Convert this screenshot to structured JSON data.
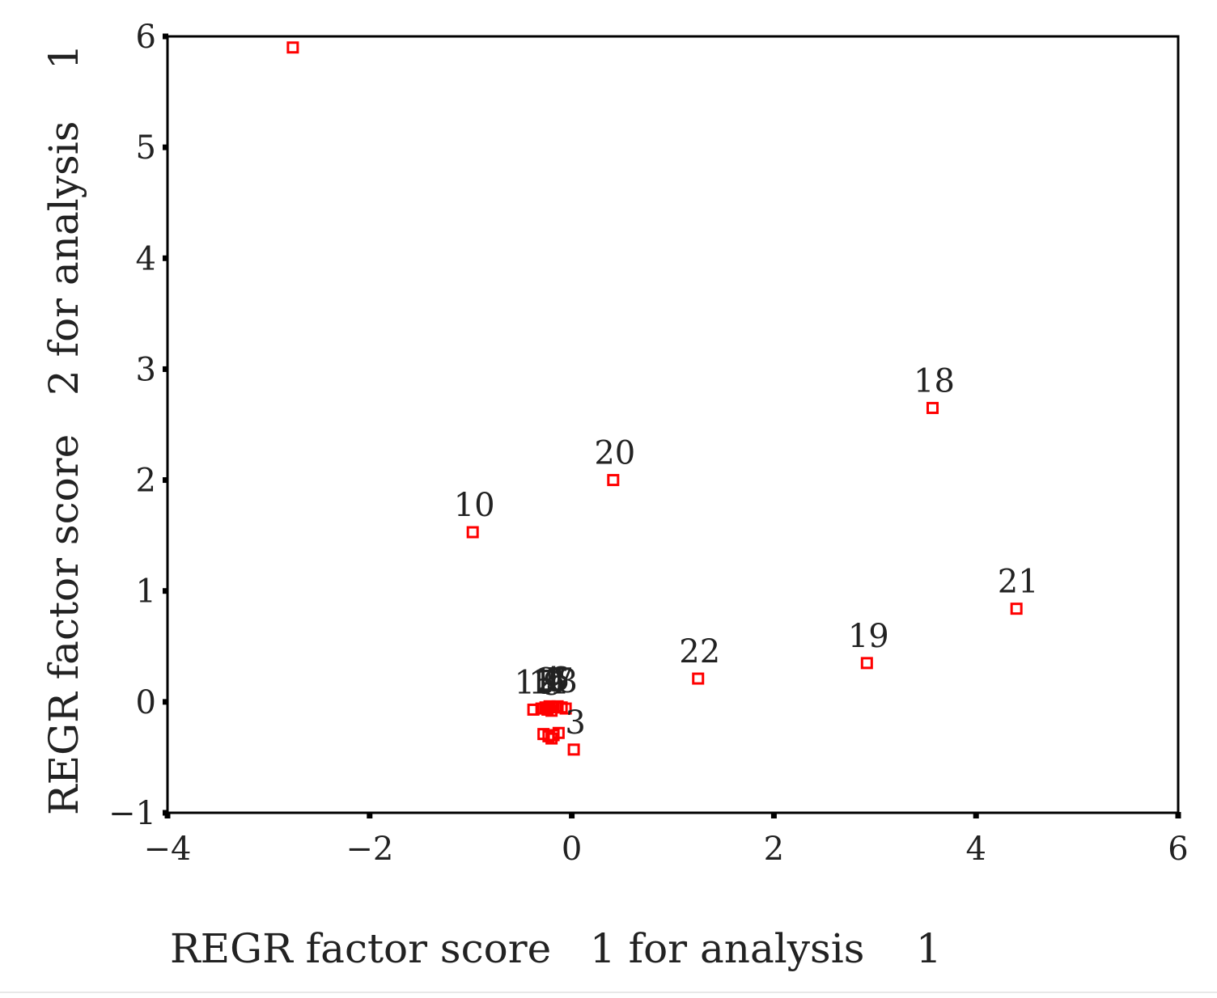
{
  "chart_data": {
    "type": "scatter",
    "xlabel": "REGR factor score   1 for analysis    1",
    "ylabel": "REGR factor score   2 for analysis    1",
    "xlim": [
      -4,
      6
    ],
    "ylim": [
      -1,
      6
    ],
    "xticks": [
      -4,
      -2,
      0,
      2,
      4,
      6
    ],
    "yticks": [
      -1,
      0,
      1,
      2,
      3,
      4,
      5,
      6
    ],
    "xtick_labels": [
      "−4",
      "−2",
      "0",
      "2",
      "4",
      "6"
    ],
    "ytick_labels": [
      "−1",
      "0",
      "1",
      "2",
      "3",
      "4",
      "5",
      "6"
    ],
    "marker": "hollow-square",
    "marker_color": "#ff0000",
    "grid": false,
    "points": [
      {
        "x": -2.76,
        "y": 5.9,
        "label": ""
      },
      {
        "x": -0.98,
        "y": 1.53,
        "label": "10"
      },
      {
        "x": 0.41,
        "y": 2.0,
        "label": "20"
      },
      {
        "x": 3.57,
        "y": 2.65,
        "label": "18"
      },
      {
        "x": 4.4,
        "y": 0.84,
        "label": "21"
      },
      {
        "x": 2.92,
        "y": 0.35,
        "label": "19"
      },
      {
        "x": 1.25,
        "y": 0.21,
        "label": "22"
      },
      {
        "x": 0.02,
        "y": -0.43,
        "label": "3"
      },
      {
        "x": -0.38,
        "y": -0.07,
        "label": "15"
      },
      {
        "x": -0.3,
        "y": -0.06,
        "label": "1"
      },
      {
        "x": -0.26,
        "y": -0.05,
        "label": "2"
      },
      {
        "x": -0.22,
        "y": -0.04,
        "label": "4"
      },
      {
        "x": -0.18,
        "y": -0.05,
        "label": "5"
      },
      {
        "x": -0.14,
        "y": -0.04,
        "label": "6"
      },
      {
        "x": -0.1,
        "y": -0.05,
        "label": "7"
      },
      {
        "x": -0.06,
        "y": -0.06,
        "label": "8"
      },
      {
        "x": -0.2,
        "y": -0.08,
        "label": "9"
      },
      {
        "x": -0.24,
        "y": -0.07,
        "label": "11"
      },
      {
        "x": -0.28,
        "y": -0.29,
        "label": ""
      },
      {
        "x": -0.23,
        "y": -0.31,
        "label": ""
      },
      {
        "x": -0.18,
        "y": -0.3,
        "label": ""
      },
      {
        "x": -0.13,
        "y": -0.28,
        "label": ""
      },
      {
        "x": -0.2,
        "y": -0.33,
        "label": ""
      }
    ]
  }
}
